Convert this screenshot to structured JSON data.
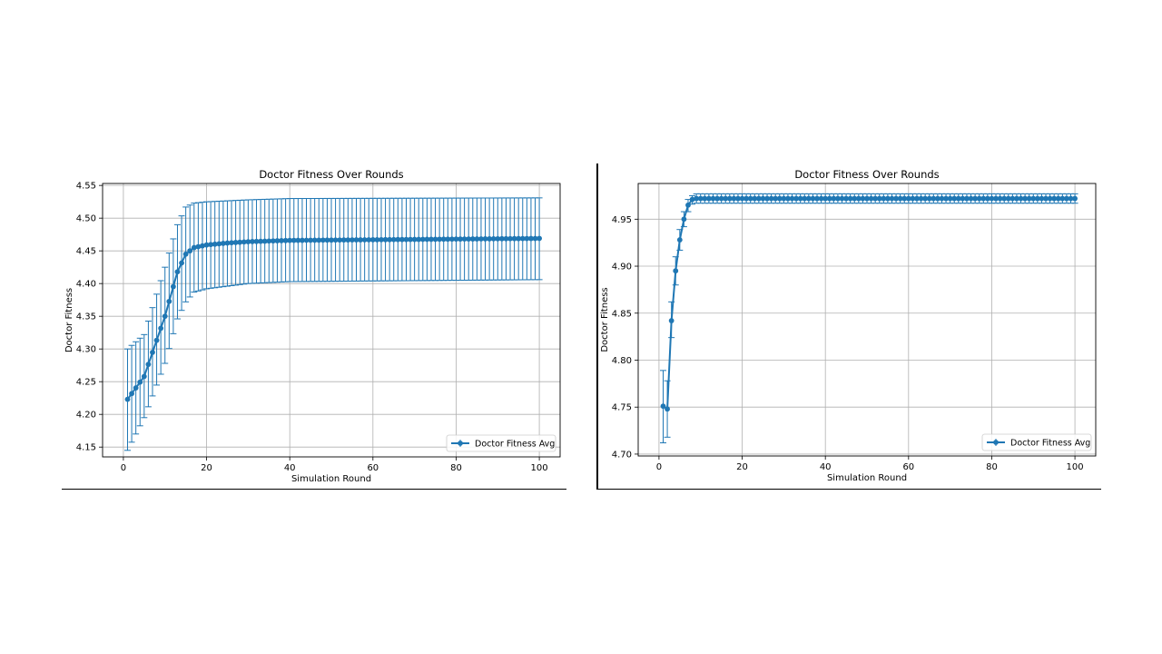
{
  "chart_data": [
    {
      "type": "line",
      "title": "Doctor Fitness Over Rounds",
      "xlabel": "Simulation Round",
      "ylabel": "Doctor Fitness",
      "xlim": [
        -5,
        105
      ],
      "ylim": [
        4.135,
        4.553
      ],
      "xticks": [
        0,
        20,
        40,
        60,
        80,
        100
      ],
      "yticks": [
        4.15,
        4.2,
        4.25,
        4.3,
        4.35,
        4.4,
        4.45,
        4.5,
        4.55
      ],
      "ytick_labels": [
        "4.15",
        "4.20",
        "4.25",
        "4.30",
        "4.35",
        "4.40",
        "4.45",
        "4.50",
        "4.55"
      ],
      "grid": true,
      "legend": "lower-right",
      "color": "#1f77b4",
      "series": [
        {
          "name": "Doctor Fitness Avg",
          "x_range": [
            1,
            100
          ],
          "y_points": [
            [
              1,
              4.223
            ],
            [
              5,
              4.258
            ],
            [
              10,
              4.35
            ],
            [
              13,
              4.418
            ],
            [
              15,
              4.445
            ],
            [
              17,
              4.455
            ],
            [
              20,
              4.459
            ],
            [
              25,
              4.462
            ],
            [
              30,
              4.464
            ],
            [
              40,
              4.466
            ],
            [
              60,
              4.467
            ],
            [
              80,
              4.468
            ],
            [
              100,
              4.469
            ]
          ],
          "upper_points": [
            [
              1,
              4.3
            ],
            [
              5,
              4.322
            ],
            [
              10,
              4.425
            ],
            [
              13,
              4.49
            ],
            [
              15,
              4.517
            ],
            [
              17,
              4.523
            ],
            [
              20,
              4.525
            ],
            [
              30,
              4.528
            ],
            [
              40,
              4.53
            ],
            [
              100,
              4.531
            ]
          ],
          "lower_points": [
            [
              1,
              4.145
            ],
            [
              5,
              4.195
            ],
            [
              10,
              4.278
            ],
            [
              13,
              4.346
            ],
            [
              15,
              4.372
            ],
            [
              17,
              4.387
            ],
            [
              20,
              4.392
            ],
            [
              30,
              4.4
            ],
            [
              40,
              4.403
            ],
            [
              100,
              4.406
            ]
          ]
        }
      ]
    },
    {
      "type": "line",
      "title": "Doctor Fitness Over Rounds",
      "xlabel": "Simulation Round",
      "ylabel": "Doctor Fitness",
      "xlim": [
        -5,
        105
      ],
      "ylim": [
        4.698,
        4.988
      ],
      "xticks": [
        0,
        20,
        40,
        60,
        80,
        100
      ],
      "yticks": [
        4.7,
        4.75,
        4.8,
        4.85,
        4.9,
        4.95
      ],
      "ytick_labels": [
        "4.70",
        "4.75",
        "4.80",
        "4.85",
        "4.90",
        "4.95"
      ],
      "grid": true,
      "legend": "lower-right",
      "color": "#1f77b4",
      "series": [
        {
          "name": "Doctor Fitness Avg",
          "x_range": [
            1,
            100
          ],
          "y_points": [
            [
              1,
              4.751
            ],
            [
              2,
              4.748
            ],
            [
              3,
              4.842
            ],
            [
              4,
              4.895
            ],
            [
              5,
              4.928
            ],
            [
              6,
              4.95
            ],
            [
              7,
              4.965
            ],
            [
              8,
              4.971
            ],
            [
              9,
              4.972
            ],
            [
              100,
              4.972
            ]
          ],
          "upper_points": [
            [
              1,
              4.789
            ],
            [
              2,
              4.778
            ],
            [
              3,
              4.862
            ],
            [
              4,
              4.91
            ],
            [
              5,
              4.939
            ],
            [
              6,
              4.958
            ],
            [
              7,
              4.971
            ],
            [
              8,
              4.975
            ],
            [
              9,
              4.977
            ],
            [
              100,
              4.977
            ]
          ],
          "lower_points": [
            [
              1,
              4.712
            ],
            [
              2,
              4.718
            ],
            [
              3,
              4.824
            ],
            [
              4,
              4.88
            ],
            [
              5,
              4.917
            ],
            [
              6,
              4.942
            ],
            [
              7,
              4.958
            ],
            [
              8,
              4.966
            ],
            [
              9,
              4.967
            ],
            [
              100,
              4.967
            ]
          ]
        }
      ]
    }
  ]
}
